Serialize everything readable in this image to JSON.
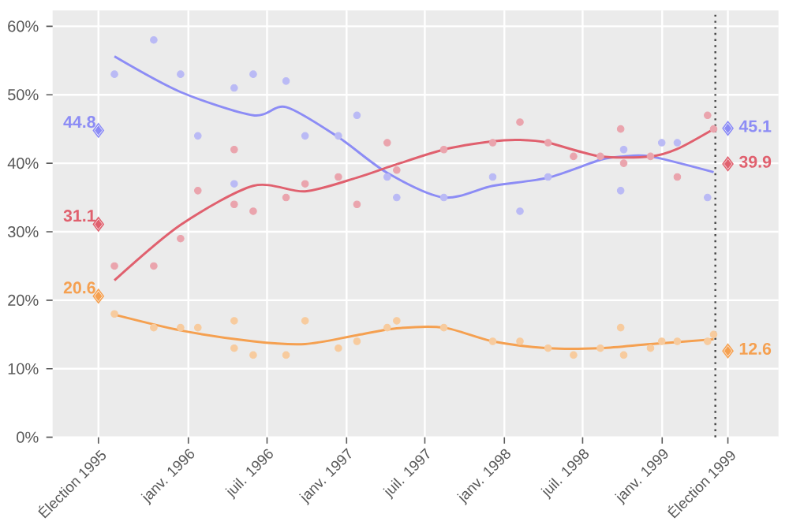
{
  "chart_data": {
    "type": "scatter",
    "xlim": [
      "1995-02-21",
      "1999-09-27"
    ],
    "ylim": [
      0,
      62.3
    ],
    "xticks": [
      {
        "value": "1995-06-07",
        "label": "Élection 1995"
      },
      {
        "value": "1996-01-01",
        "label": "janv. 1996"
      },
      {
        "value": "1996-07-01",
        "label": "juil. 1996"
      },
      {
        "value": "1997-01-01",
        "label": "janv. 1997"
      },
      {
        "value": "1997-07-01",
        "label": "juil. 1997"
      },
      {
        "value": "1998-01-01",
        "label": "janv. 1998"
      },
      {
        "value": "1998-07-01",
        "label": "juil. 1998"
      },
      {
        "value": "1999-01-01",
        "label": "janv. 1999"
      },
      {
        "value": "1999-06-02",
        "label": "Élection 1999"
      }
    ],
    "yticks": [
      {
        "value": 0,
        "label": "0%"
      },
      {
        "value": 10,
        "label": "10%"
      },
      {
        "value": 20,
        "label": "20%"
      },
      {
        "value": 30,
        "label": "30%"
      },
      {
        "value": 40,
        "label": "40%"
      },
      {
        "value": 50,
        "label": "50%"
      },
      {
        "value": 60,
        "label": "60%"
      }
    ],
    "grid": true,
    "ref_lines": [
      {
        "axis": "x",
        "value": "1999-05-04",
        "line_style": "dotted",
        "color": "#444444"
      }
    ],
    "series": [
      {
        "marker": "circle",
        "color": "#babaf5",
        "x": [
          "1995-07-14",
          "1995-10-13",
          "1995-12-14",
          "1996-01-23",
          "1996-04-16",
          "1996-04-16",
          "1996-05-30",
          "1996-08-14",
          "1996-09-27",
          "1996-12-13",
          "1997-01-25",
          "1997-04-05",
          "1997-04-27",
          "1997-08-14",
          "1997-12-05",
          "1998-02-06",
          "1998-04-12",
          "1998-09-27",
          "1998-10-04",
          "1998-12-31",
          "1999-02-05",
          "1999-04-16"
        ],
        "values": [
          53,
          58,
          53,
          44,
          51,
          37,
          53,
          52,
          44,
          44,
          47,
          38,
          35,
          35,
          38,
          33,
          38,
          36,
          42,
          43,
          43,
          35
        ]
      },
      {
        "marker": "circle",
        "color": "#eaa4ad",
        "x": [
          "1995-07-14",
          "1995-10-13",
          "1995-12-14",
          "1996-01-23",
          "1996-04-16",
          "1996-04-16",
          "1996-05-30",
          "1996-08-14",
          "1996-09-27",
          "1996-12-13",
          "1997-01-25",
          "1997-04-05",
          "1997-04-27",
          "1997-08-14",
          "1997-12-05",
          "1998-02-06",
          "1998-04-12",
          "1998-06-10",
          "1998-08-11",
          "1998-09-27",
          "1998-10-04",
          "1998-12-05",
          "1999-02-05",
          "1999-04-16",
          "1999-04-30"
        ],
        "values": [
          25,
          25,
          29,
          36,
          42,
          34,
          33,
          35,
          37,
          38,
          34,
          43,
          39,
          42,
          43,
          46,
          43,
          41,
          41,
          45,
          40,
          41,
          38,
          47,
          45
        ]
      },
      {
        "marker": "circle",
        "color": "#f7cb9e",
        "x": [
          "1995-07-14",
          "1995-10-13",
          "1995-12-14",
          "1996-01-23",
          "1996-04-16",
          "1996-04-16",
          "1996-05-30",
          "1996-08-14",
          "1996-09-27",
          "1996-12-13",
          "1997-01-25",
          "1997-04-05",
          "1997-04-27",
          "1997-08-14",
          "1997-12-05",
          "1998-02-06",
          "1998-04-12",
          "1998-06-10",
          "1998-08-11",
          "1998-09-27",
          "1998-10-04",
          "1998-12-05",
          "1998-12-31",
          "1999-02-05",
          "1999-04-16",
          "1999-04-30"
        ],
        "values": [
          18,
          16,
          16,
          16,
          17,
          13,
          12,
          12,
          17,
          13,
          14,
          16,
          17,
          16,
          14,
          14,
          13,
          12,
          13,
          16,
          12,
          13,
          14,
          14,
          14,
          15
        ]
      },
      {
        "type": "line",
        "color": "#8c8cf5",
        "x": [
          "1995-07-14",
          "1995-12-14",
          "1996-05-30",
          "1996-08-14",
          "1996-12-13",
          "1997-04-05",
          "1997-08-14",
          "1997-12-05",
          "1998-04-12",
          "1998-08-11",
          "1998-10-04",
          "1998-12-05",
          "1999-04-30"
        ],
        "values": [
          55.6,
          50.4,
          47.0,
          48.2,
          43.8,
          38.6,
          35.0,
          36.7,
          37.9,
          40.5,
          41.0,
          41.0,
          38.7
        ]
      },
      {
        "type": "line",
        "color": "#e0606e",
        "x": [
          "1995-07-14",
          "1995-12-14",
          "1996-05-30",
          "1996-09-27",
          "1997-01-25",
          "1997-04-20",
          "1997-08-14",
          "1997-12-05",
          "1998-02-06",
          "1998-04-12",
          "1998-08-11",
          "1998-12-05",
          "1999-02-05",
          "1999-04-30"
        ],
        "values": [
          22.9,
          31.0,
          36.7,
          35.9,
          37.9,
          39.7,
          42.0,
          43.2,
          43.4,
          43.0,
          41.0,
          41.0,
          42.1,
          45.0
        ]
      },
      {
        "type": "line",
        "color": "#f5a050",
        "x": [
          "1995-07-14",
          "1995-12-14",
          "1996-05-30",
          "1996-09-27",
          "1997-01-25",
          "1997-04-27",
          "1997-08-14",
          "1997-12-05",
          "1998-04-12",
          "1998-08-11",
          "1998-12-05",
          "1999-04-30"
        ],
        "values": [
          17.9,
          15.6,
          14.0,
          13.6,
          14.9,
          15.9,
          16.0,
          14.0,
          13.0,
          13.0,
          13.6,
          14.3
        ]
      },
      {
        "marker": "diamond",
        "color": "#8c8cf5",
        "x": [
          "1995-06-07",
          "1999-06-02"
        ],
        "values": [
          44.8,
          45.1
        ],
        "value_labels": [
          "44.8",
          "45.1"
        ]
      },
      {
        "marker": "diamond",
        "color": "#e0606e",
        "x": [
          "1995-06-07",
          "1999-06-02"
        ],
        "values": [
          31.1,
          39.9
        ],
        "value_labels": [
          "31.1",
          "39.9"
        ]
      },
      {
        "marker": "diamond",
        "color": "#f5a050",
        "x": [
          "1995-06-07",
          "1999-06-02"
        ],
        "values": [
          20.6,
          12.6
        ],
        "value_labels": [
          "20.6",
          "12.6"
        ]
      }
    ]
  }
}
